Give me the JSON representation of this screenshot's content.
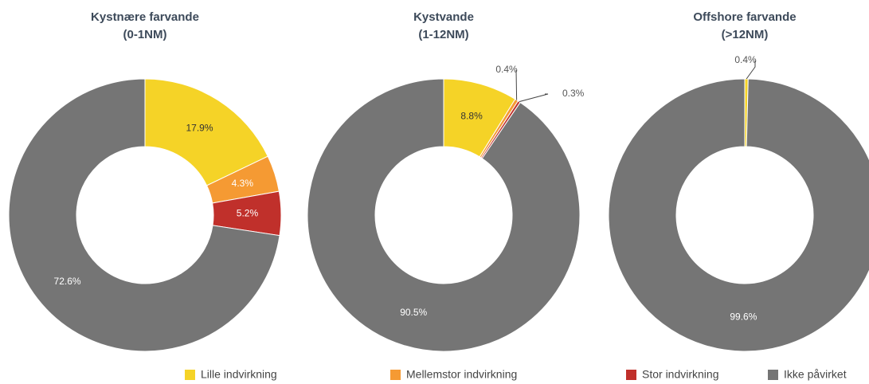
{
  "chart_data": [
    {
      "type": "pie",
      "title": "Kystnære farvande\n(0-1NM)",
      "categories": [
        "Lille indvirkning",
        "Mellemstor indvirkning",
        "Stor indvirkning",
        "Ikke påvirket"
      ],
      "values": [
        17.9,
        4.3,
        5.2,
        72.6
      ],
      "value_labels": [
        "17.9%",
        "4.3%",
        "5.2%",
        "72.6%"
      ],
      "colors": [
        "#f5d327",
        "#f59a33",
        "#c0302b",
        "#757575"
      ],
      "legend": "bottom"
    },
    {
      "type": "pie",
      "title": "Kystvande\n(1-12NM)",
      "categories": [
        "Lille indvirkning",
        "Mellemstor indvirkning",
        "Stor indvirkning",
        "Ikke påvirket"
      ],
      "values": [
        8.8,
        0.4,
        0.3,
        90.5
      ],
      "value_labels": [
        "8.8%",
        "0.4%",
        "0.3%",
        "90.5%"
      ],
      "colors": [
        "#f5d327",
        "#f59a33",
        "#c0302b",
        "#757575"
      ]
    },
    {
      "type": "pie",
      "title": "Offshore farvande\n(>12NM)",
      "categories": [
        "Lille indvirkning",
        "Ikke påvirket"
      ],
      "values": [
        0.4,
        99.6
      ],
      "value_labels": [
        "0.4%",
        "99.6%"
      ],
      "colors": [
        "#f5d327",
        "#757575"
      ]
    }
  ]
}
